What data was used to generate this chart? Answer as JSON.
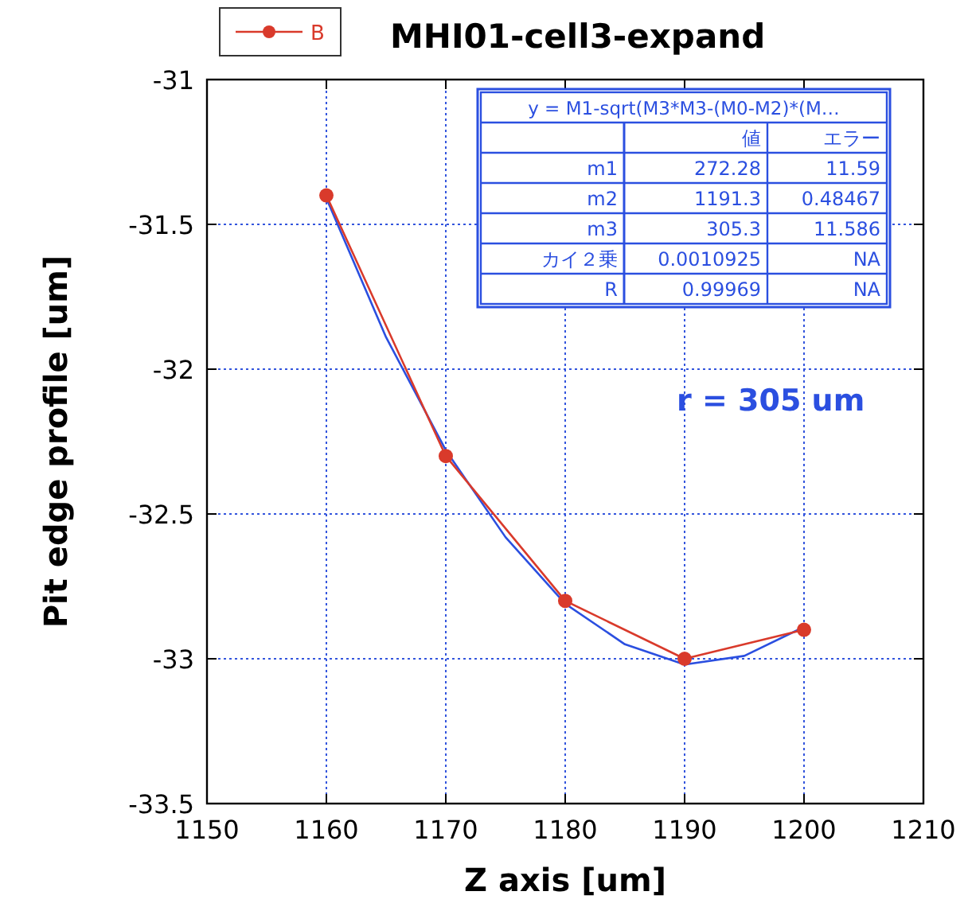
{
  "chart_data": {
    "type": "line",
    "title": "MHI01-cell3-expand",
    "xlabel": "Z axis [um]",
    "ylabel": "Pit edge profile [um]",
    "series": [
      {
        "name": "B",
        "color": "#d93a2b",
        "marker": "circle",
        "x": [
          1160,
          1170,
          1180,
          1190,
          1200
        ],
        "values": [
          -31.4,
          -32.3,
          -32.8,
          -33.0,
          -32.9
        ]
      },
      {
        "color": "#2b4fe0",
        "marker": "none",
        "x": [
          1160,
          1165,
          1170,
          1175,
          1180,
          1185,
          1190,
          1195,
          1200
        ],
        "values": [
          -31.41,
          -31.89,
          -32.28,
          -32.58,
          -32.81,
          -32.95,
          -33.02,
          -32.99,
          -32.89
        ]
      }
    ],
    "xlim": [
      1150,
      1210
    ],
    "xticks": [
      1150,
      1160,
      1170,
      1180,
      1190,
      1200,
      1210
    ],
    "ylim": [
      -33.5,
      -31
    ],
    "yticks": [
      -31,
      -31.5,
      -32,
      -32.5,
      -33,
      -33.5
    ],
    "grid": true,
    "legend": "top left",
    "annotations": [
      "y = M1-sqrt(M3*M3-(M0-M2)*(M…",
      "値",
      "エラー",
      "m1",
      "272.28",
      "11.59",
      "m2",
      "1191.3",
      "0.48467",
      "m3",
      "305.3",
      "11.586",
      "カイ２乗",
      "0.0010925",
      "NA",
      "R",
      "0.99969",
      "NA",
      "r = 305 um"
    ]
  }
}
